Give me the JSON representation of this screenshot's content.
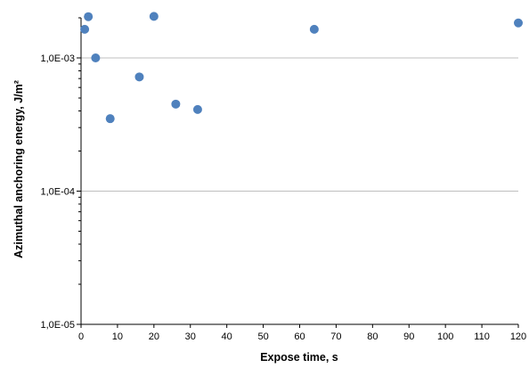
{
  "chart_data": {
    "type": "scatter",
    "title": "",
    "xlabel": "Expose time, s",
    "ylabel": "Azimuthal anchoring energy, J/m²",
    "xlim": [
      0,
      120
    ],
    "x_ticks": [
      0,
      10,
      20,
      30,
      40,
      50,
      60,
      70,
      80,
      90,
      100,
      110,
      120
    ],
    "x_tick_labels": [
      "0",
      "10",
      "20",
      "30",
      "40",
      "50",
      "60",
      "70",
      "80",
      "90",
      "100",
      "110",
      "120"
    ],
    "y_scale": "log",
    "ylim": [
      1e-05,
      0.002
    ],
    "y_ticks": [
      1e-05,
      0.0001,
      0.001
    ],
    "y_tick_labels": [
      "1,0E-05",
      "1,0E-04",
      "1,0E-03"
    ],
    "grid": "horizontal",
    "legend": "none",
    "marker_color": "#4F81BD",
    "gridline_color": "#BFBFBF",
    "series": [
      {
        "points": [
          {
            "x": 1,
            "y": 0.00164
          },
          {
            "x": 2,
            "y": 0.00204
          },
          {
            "x": 4,
            "y": 0.001
          },
          {
            "x": 8,
            "y": 0.00035
          },
          {
            "x": 16,
            "y": 0.00072
          },
          {
            "x": 20,
            "y": 0.00205
          },
          {
            "x": 26,
            "y": 0.00045
          },
          {
            "x": 32,
            "y": 0.00041
          },
          {
            "x": 64,
            "y": 0.00164
          },
          {
            "x": 120,
            "y": 0.00183
          }
        ]
      }
    ]
  }
}
